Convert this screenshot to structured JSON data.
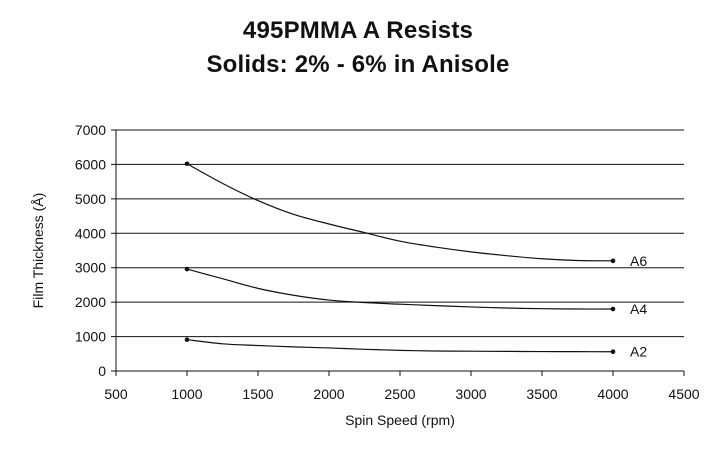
{
  "chart_data": {
    "type": "line",
    "title": "495PMMA A Resists",
    "subtitle": "Solids: 2% - 6% in Anisole",
    "xlabel": "Spin Speed (rpm)",
    "ylabel": "Film Thickness (Å)",
    "xlim": [
      500,
      4500
    ],
    "ylim": [
      0,
      7000
    ],
    "x_ticks": [
      500,
      1000,
      1500,
      2000,
      2500,
      3000,
      3500,
      4000,
      4500
    ],
    "y_ticks": [
      0,
      1000,
      2000,
      3000,
      4000,
      5000,
      6000,
      7000
    ],
    "grid": "horizontal",
    "legend": "none (series labeled at line ends)",
    "series": [
      {
        "name": "A6",
        "markers": [
          [
            1000,
            6020
          ],
          [
            4000,
            3200
          ]
        ],
        "curve": [
          [
            1000,
            6020
          ],
          [
            1250,
            5450
          ],
          [
            1500,
            4950
          ],
          [
            1750,
            4550
          ],
          [
            2000,
            4270
          ],
          [
            2250,
            4020
          ],
          [
            2500,
            3770
          ],
          [
            2750,
            3600
          ],
          [
            3000,
            3460
          ],
          [
            3250,
            3350
          ],
          [
            3500,
            3260
          ],
          [
            3750,
            3210
          ],
          [
            4000,
            3200
          ]
        ]
      },
      {
        "name": "A4",
        "markers": [
          [
            1000,
            2960
          ],
          [
            4000,
            1800
          ]
        ],
        "curve": [
          [
            1000,
            2960
          ],
          [
            1250,
            2680
          ],
          [
            1500,
            2400
          ],
          [
            1750,
            2200
          ],
          [
            2000,
            2060
          ],
          [
            2250,
            1990
          ],
          [
            2500,
            1940
          ],
          [
            2750,
            1900
          ],
          [
            3000,
            1860
          ],
          [
            3250,
            1830
          ],
          [
            3500,
            1810
          ],
          [
            3750,
            1800
          ],
          [
            4000,
            1800
          ]
        ]
      },
      {
        "name": "A2",
        "markers": [
          [
            1000,
            910
          ],
          [
            4000,
            560
          ]
        ],
        "curve": [
          [
            1000,
            910
          ],
          [
            1250,
            790
          ],
          [
            1500,
            740
          ],
          [
            1750,
            700
          ],
          [
            2000,
            670
          ],
          [
            2250,
            630
          ],
          [
            2500,
            600
          ],
          [
            2750,
            580
          ],
          [
            3000,
            575
          ],
          [
            3250,
            570
          ],
          [
            3500,
            565
          ],
          [
            3750,
            562
          ],
          [
            4000,
            560
          ]
        ]
      }
    ]
  }
}
